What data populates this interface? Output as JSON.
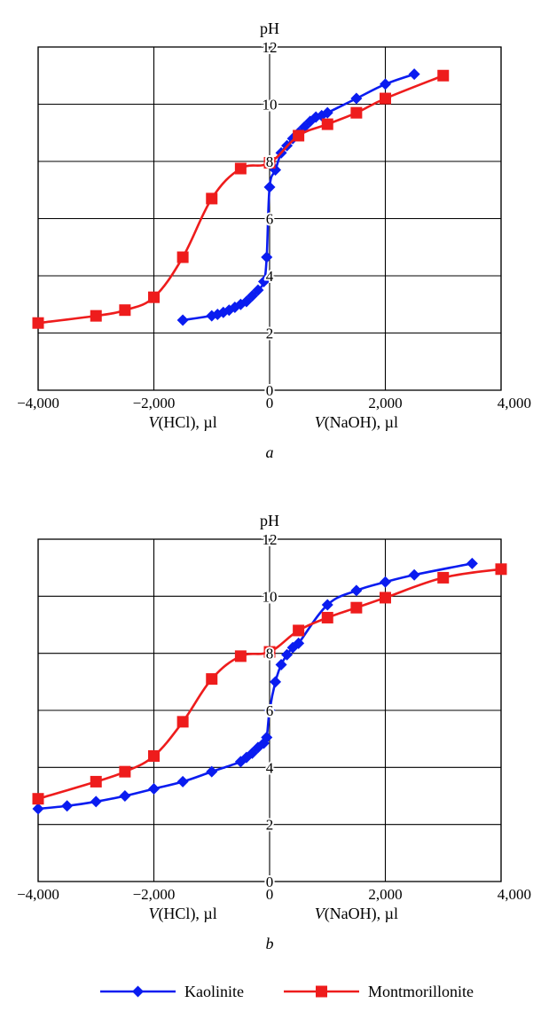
{
  "chart_data": [
    {
      "type": "line",
      "panel_label": "a",
      "ylabel": "pH",
      "xlabel_left_var": "V",
      "xlabel_left_rest": "(HCl), µl",
      "xlabel_right_var": "V",
      "xlabel_right_rest": "(NaOH), µl",
      "xlim": [
        -4000,
        4000
      ],
      "ylim": [
        0,
        12
      ],
      "x_ticks": [
        -4000,
        -2000,
        0,
        2000,
        4000
      ],
      "x_tick_labels": [
        "−4,000",
        "−2,000",
        "0",
        "2,000",
        "4,000"
      ],
      "y_ticks": [
        0,
        2,
        4,
        6,
        8,
        10,
        12
      ],
      "y_tick_labels": [
        "0",
        "2",
        "4",
        "6",
        "8",
        "10",
        "12"
      ],
      "grid": true,
      "series": [
        {
          "name": "Kaolinite",
          "color": "#0a1cf0",
          "marker": "diamond",
          "x": [
            -1500,
            -1000,
            -900,
            -800,
            -700,
            -600,
            -500,
            -400,
            -300,
            -200,
            -100,
            -50,
            0,
            100,
            200,
            300,
            400,
            500,
            600,
            700,
            800,
            900,
            1000,
            1500,
            2000,
            2500
          ],
          "y": [
            2.45,
            2.6,
            2.65,
            2.72,
            2.8,
            2.9,
            3.0,
            3.1,
            3.3,
            3.5,
            3.8,
            4.65,
            7.1,
            7.7,
            8.3,
            8.55,
            8.8,
            9.0,
            9.2,
            9.4,
            9.55,
            9.6,
            9.7,
            10.2,
            10.7,
            11.05
          ]
        },
        {
          "name": "Montmorillonite",
          "color": "#ee1c1c",
          "marker": "square",
          "x": [
            -4000,
            -3000,
            -2500,
            -2000,
            -1500,
            -1000,
            -500,
            0,
            500,
            1000,
            1500,
            2000,
            3000
          ],
          "y": [
            2.35,
            2.6,
            2.8,
            3.25,
            4.65,
            6.7,
            7.75,
            7.95,
            8.9,
            9.3,
            9.7,
            10.2,
            11.0
          ]
        }
      ]
    },
    {
      "type": "line",
      "panel_label": "b",
      "ylabel": "pH",
      "xlabel_left_var": "V",
      "xlabel_left_rest": "(HCl), µl",
      "xlabel_right_var": "V",
      "xlabel_right_rest": "(NaOH), µl",
      "xlim": [
        -4000,
        4000
      ],
      "ylim": [
        0,
        12
      ],
      "x_ticks": [
        -4000,
        -2000,
        0,
        2000,
        4000
      ],
      "x_tick_labels": [
        "−4,000",
        "−2,000",
        "0",
        "2,000",
        "4,000"
      ],
      "y_ticks": [
        0,
        2,
        4,
        6,
        8,
        10,
        12
      ],
      "y_tick_labels": [
        "0",
        "2",
        "4",
        "6",
        "8",
        "10",
        "12"
      ],
      "grid": true,
      "series": [
        {
          "name": "Kaolinite",
          "color": "#0a1cf0",
          "marker": "diamond",
          "x": [
            -4000,
            -3500,
            -3000,
            -2500,
            -2000,
            -1500,
            -1000,
            -500,
            -400,
            -300,
            -200,
            -100,
            -50,
            0,
            100,
            200,
            300,
            400,
            500,
            1000,
            1500,
            2000,
            2500,
            3500
          ],
          "y": [
            2.55,
            2.65,
            2.8,
            3.0,
            3.25,
            3.5,
            3.85,
            4.2,
            4.35,
            4.5,
            4.7,
            4.85,
            5.05,
            6.0,
            7.0,
            7.6,
            7.95,
            8.2,
            8.35,
            9.7,
            10.2,
            10.5,
            10.75,
            11.15
          ]
        },
        {
          "name": "Montmorillonite",
          "color": "#ee1c1c",
          "marker": "square",
          "x": [
            -4000,
            -3000,
            -2500,
            -2000,
            -1500,
            -1000,
            -500,
            0,
            500,
            1000,
            1500,
            2000,
            3000,
            4000
          ],
          "y": [
            2.9,
            3.5,
            3.85,
            4.4,
            5.6,
            7.1,
            7.9,
            8.05,
            8.8,
            9.25,
            9.6,
            9.95,
            10.65,
            10.95
          ]
        }
      ]
    }
  ],
  "legend": {
    "placement": "bottom",
    "items": [
      {
        "label": "Kaolinite",
        "color": "#0a1cf0",
        "marker": "diamond"
      },
      {
        "label": "Montmorillonite",
        "color": "#ee1c1c",
        "marker": "square"
      }
    ]
  }
}
